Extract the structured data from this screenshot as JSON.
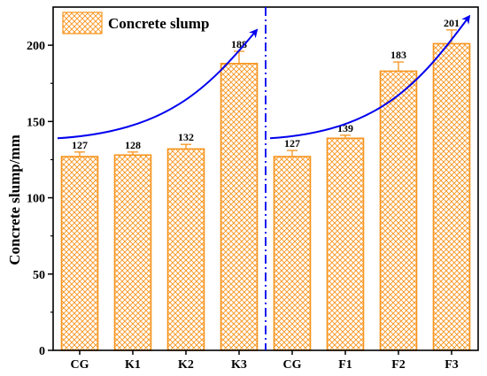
{
  "chart_data": {
    "type": "bar",
    "ylabel": "Concrete slump/mm",
    "xlabel": "",
    "ylim": [
      0,
      225
    ],
    "yticks": [
      0,
      50,
      100,
      150,
      200
    ],
    "categories": [
      "CG",
      "K1",
      "K2",
      "K3",
      "CG",
      "F1",
      "F2",
      "F3"
    ],
    "series": [
      {
        "name": "Concrete slump",
        "values": [
          127,
          128,
          132,
          188,
          127,
          139,
          183,
          201
        ],
        "errors": [
          3,
          2,
          3,
          8,
          4,
          2,
          6,
          9
        ],
        "value_labels": [
          "127",
          "128",
          "132",
          "188",
          "127",
          "139",
          "183",
          "201"
        ]
      }
    ],
    "legend_position": "top-left",
    "bar_color": "#F7941D",
    "bar_fill": "crosshatch",
    "divider": {
      "after_index": 3,
      "style": "dash-dot",
      "color": "#0000EE"
    },
    "trend_arrows": [
      {
        "from_index": 0,
        "to_index": 3,
        "color": "#0000EE"
      },
      {
        "from_index": 4,
        "to_index": 7,
        "color": "#0000EE"
      }
    ],
    "grid": false
  }
}
